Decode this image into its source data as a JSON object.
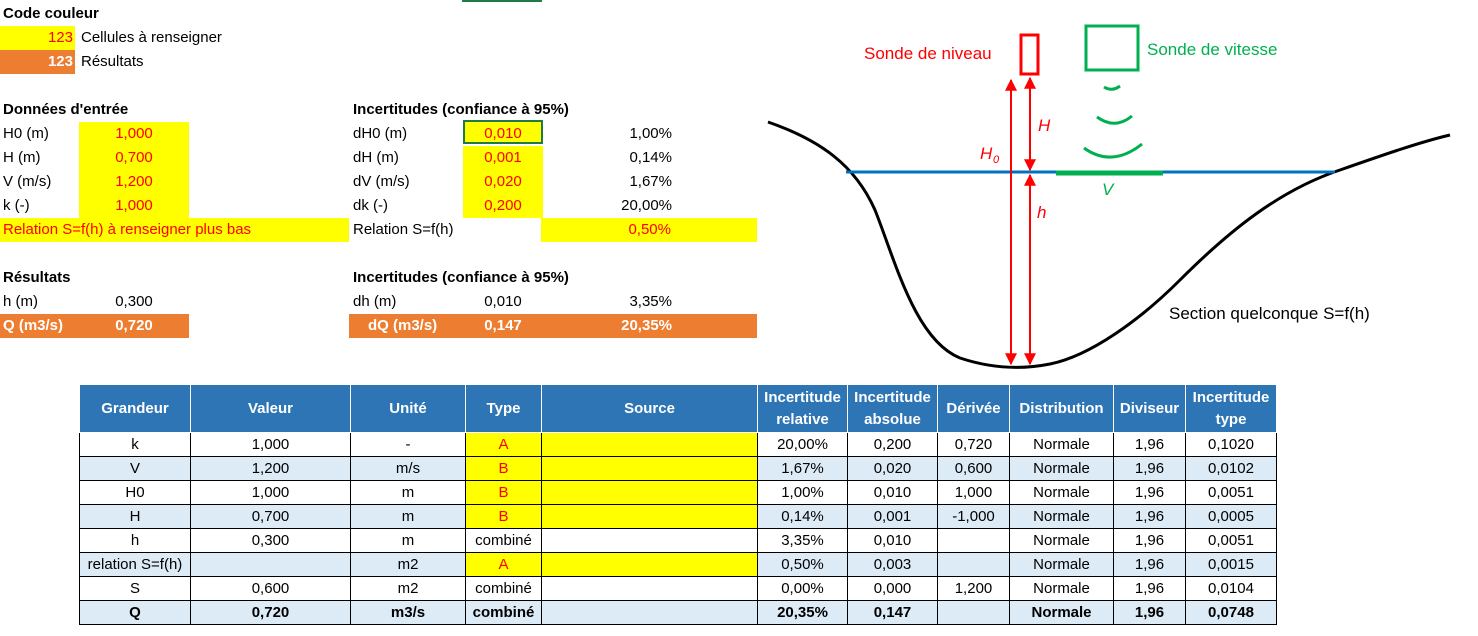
{
  "legend": {
    "title": "Code couleur",
    "input_sample": "123",
    "input_label": "Cellules à renseigner",
    "result_sample": "123",
    "result_label": "Résultats"
  },
  "inputs": {
    "title": "Données d'entrée",
    "rows": [
      {
        "label": "H0 (m)",
        "value": "1,000"
      },
      {
        "label": "H (m)",
        "value": "0,700"
      },
      {
        "label": "V (m/s)",
        "value": "1,200"
      },
      {
        "label": "k (-)",
        "value": "1,000"
      }
    ],
    "relation_note": "Relation S=f(h) à renseigner plus bas"
  },
  "input_uncertainties": {
    "title": "Incertitudes (confiance à 95%)",
    "rows": [
      {
        "label": "dH0 (m)",
        "value": "0,010",
        "percent": "1,00%"
      },
      {
        "label": "dH (m)",
        "value": "0,001",
        "percent": "0,14%"
      },
      {
        "label": "dV (m/s)",
        "value": "0,020",
        "percent": "1,67%"
      },
      {
        "label": "dk (-)",
        "value": "0,200",
        "percent": "20,00%"
      }
    ],
    "relation_label": "Relation S=f(h)",
    "relation_percent": "0,50%"
  },
  "results": {
    "title": "Résultats",
    "h_label": "h (m)",
    "h_value": "0,300",
    "q_label": "Q (m3/s)",
    "q_value": "0,720"
  },
  "result_uncertainties": {
    "title": "Incertitudes (confiance à 95%)",
    "dh_label": "dh (m)",
    "dh_value": "0,010",
    "dh_percent": "3,35%",
    "dq_label": "dQ (m3/s)",
    "dq_value": "0,147",
    "dq_percent": "20,35%"
  },
  "diagram": {
    "level_probe": "Sonde de niveau",
    "speed_probe": "Sonde de vitesse",
    "H": "H",
    "H0": "H",
    "H0_sub": "0",
    "h": "h",
    "V": "V",
    "section": "Section quelconque S=f(h)",
    "colors": {
      "red": "#ff0000",
      "green": "#00b050",
      "blue": "#0070c0"
    }
  },
  "table": {
    "headers": [
      "Grandeur",
      "Valeur",
      "Unité",
      "Type",
      "Source",
      "Incertitude relative",
      "Incertitude absolue",
      "Dérivée",
      "Distribution",
      "Diviseur",
      "Incertitude type"
    ],
    "rows": [
      {
        "grandeur": "k",
        "valeur": "1,000",
        "unite": "-",
        "type": "A",
        "source": "",
        "rel": "20,00%",
        "abs": "0,200",
        "derivee": "0,720",
        "distribution": "Normale",
        "diviseur": "1,96",
        "type_unc": "0,1020"
      },
      {
        "grandeur": "V",
        "valeur": "1,200",
        "unite": "m/s",
        "type": "B",
        "source": "",
        "rel": "1,67%",
        "abs": "0,020",
        "derivee": "0,600",
        "distribution": "Normale",
        "diviseur": "1,96",
        "type_unc": "0,0102"
      },
      {
        "grandeur": "H0",
        "valeur": "1,000",
        "unite": "m",
        "type": "B",
        "source": "",
        "rel": "1,00%",
        "abs": "0,010",
        "derivee": "1,000",
        "distribution": "Normale",
        "diviseur": "1,96",
        "type_unc": "0,0051"
      },
      {
        "grandeur": "H",
        "valeur": "0,700",
        "unite": "m",
        "type": "B",
        "source": "",
        "rel": "0,14%",
        "abs": "0,001",
        "derivee": "-1,000",
        "distribution": "Normale",
        "diviseur": "1,96",
        "type_unc": "0,0005"
      },
      {
        "grandeur": "h",
        "valeur": "0,300",
        "unite": "m",
        "type": "combiné",
        "source": "",
        "rel": "3,35%",
        "abs": "0,010",
        "derivee": "",
        "distribution": "Normale",
        "diviseur": "1,96",
        "type_unc": "0,0051"
      },
      {
        "grandeur": "relation S=f(h)",
        "valeur": "",
        "unite": "m2",
        "type": "A",
        "source": "",
        "rel": "0,50%",
        "abs": "0,003",
        "derivee": "",
        "distribution": "Normale",
        "diviseur": "1,96",
        "type_unc": "0,0015"
      },
      {
        "grandeur": "S",
        "valeur": "0,600",
        "unite": "m2",
        "type": "combiné",
        "source": "",
        "rel": "0,00%",
        "abs": "0,000",
        "derivee": "1,200",
        "distribution": "Normale",
        "diviseur": "1,96",
        "type_unc": "0,0104"
      },
      {
        "grandeur": "Q",
        "valeur": "0,720",
        "unite": "m3/s",
        "type": "combiné",
        "source": "",
        "rel": "20,35%",
        "abs": "0,147",
        "derivee": "",
        "distribution": "Normale",
        "diviseur": "1,96",
        "type_unc": "0,0748"
      }
    ]
  }
}
